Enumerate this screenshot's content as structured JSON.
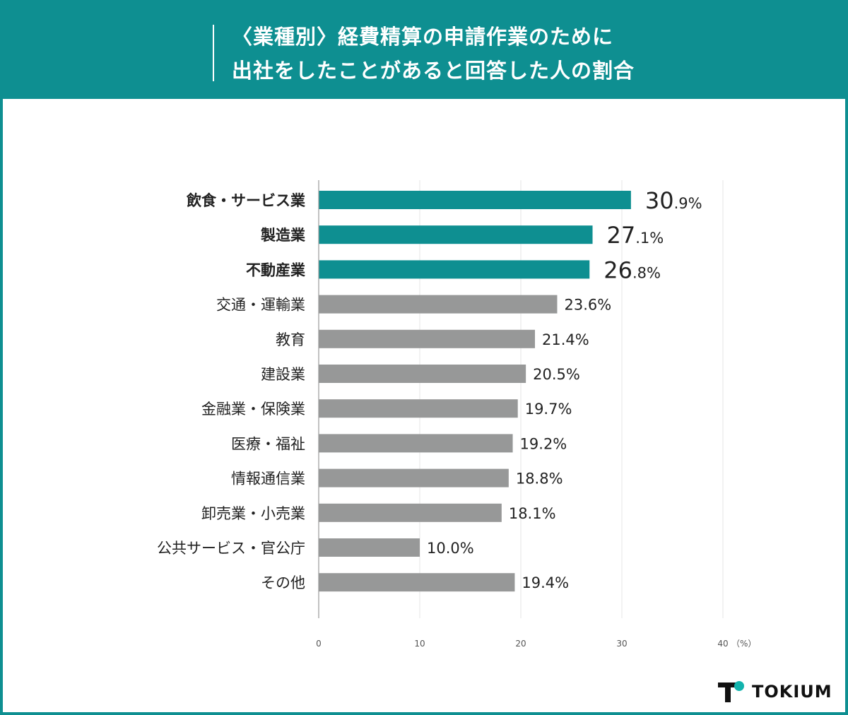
{
  "header": {
    "title_line1": "〈業種別〉経費精算の申請作業のために",
    "title_line2": "出社をしたことがあると回答した人の割合"
  },
  "colors": {
    "header_bg": "#0e8f91",
    "highlight_bar": "#0e8f91",
    "normal_bar": "#979898",
    "text": "#222222",
    "grid": "#e6e6e6"
  },
  "chart_data": {
    "type": "bar",
    "orientation": "horizontal",
    "title": "〈業種別〉経費精算の申請作業のために出社をしたことがあると回答した人の割合",
    "categories": [
      "飲食・サービス業",
      "製造業",
      "不動産業",
      "交通・運輸業",
      "教育",
      "建設業",
      "金融業・保険業",
      "医療・福祉",
      "情報通信業",
      "卸売業・小売業",
      "公共サービス・官公庁",
      "その他"
    ],
    "values": [
      30.9,
      27.1,
      26.8,
      23.6,
      21.4,
      20.5,
      19.7,
      19.2,
      18.8,
      18.1,
      10.0,
      19.4
    ],
    "value_labels": [
      "30.9%",
      "27.1%",
      "26.8%",
      "23.6%",
      "21.4%",
      "20.5%",
      "19.7%",
      "19.2%",
      "18.8%",
      "18.1%",
      "10.0%",
      "19.4%"
    ],
    "highlighted": [
      true,
      true,
      true,
      false,
      false,
      false,
      false,
      false,
      false,
      false,
      false,
      false
    ],
    "xlim": [
      0,
      40
    ],
    "xticks": [
      0,
      10,
      20,
      30,
      40
    ],
    "xtick_labels": [
      "0",
      "10",
      "20",
      "30",
      "40"
    ],
    "unit_label": "（%）",
    "grid": true
  },
  "brand": {
    "name": "TOKIUM"
  }
}
